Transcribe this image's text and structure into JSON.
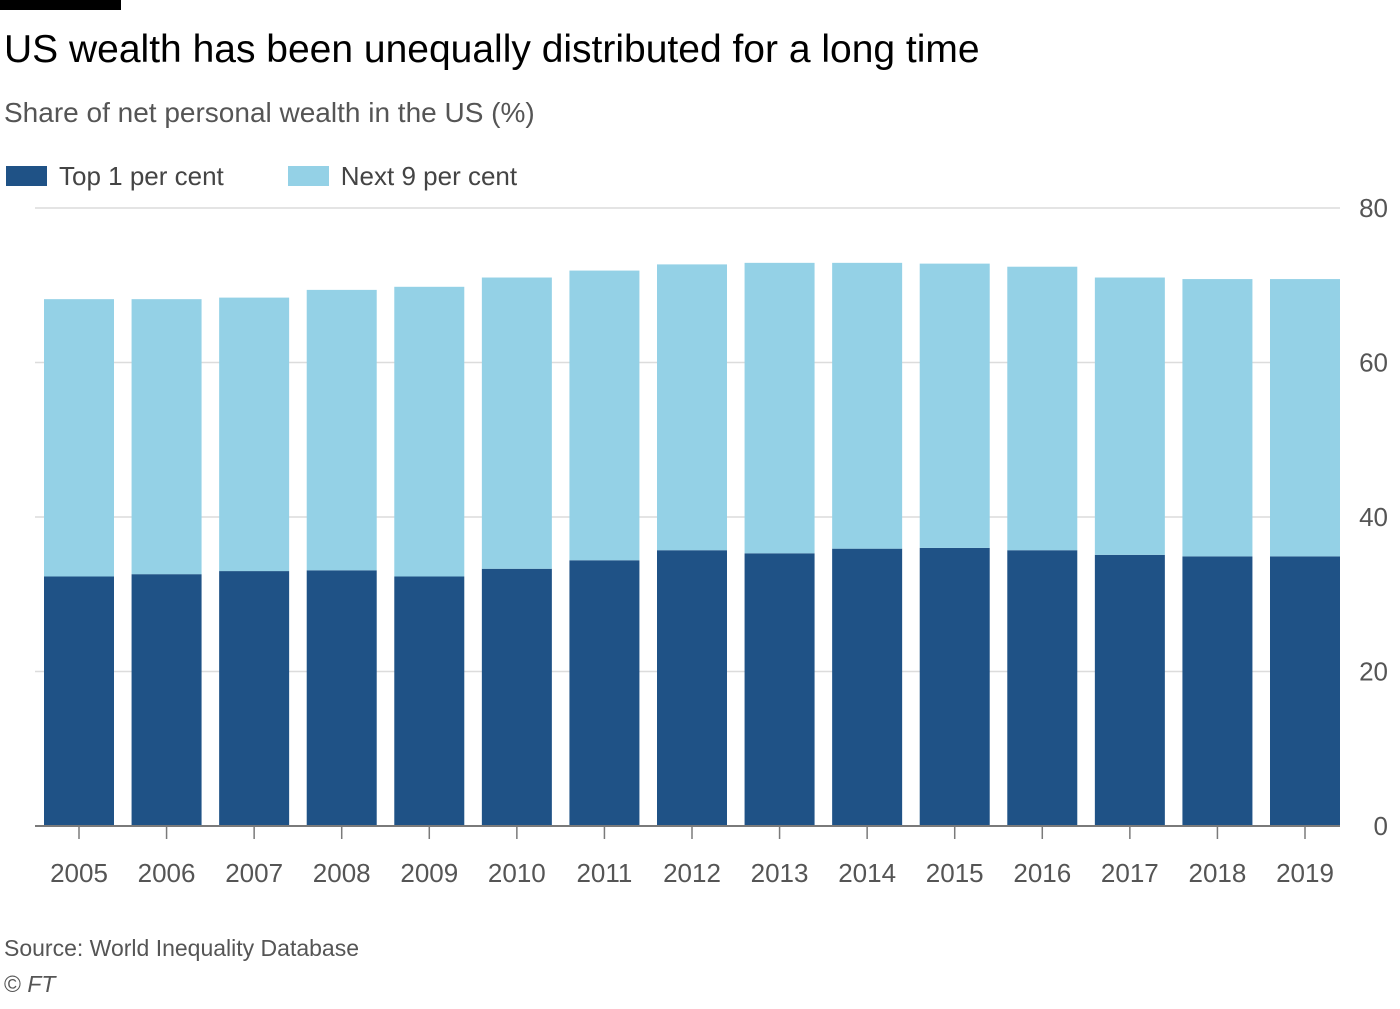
{
  "header": {
    "title": "US wealth has been unequally distributed for a long time",
    "subtitle": "Share of net personal wealth in the US (%)"
  },
  "legend": [
    {
      "label": "Top 1 per cent",
      "color": "#1f5286"
    },
    {
      "label": "Next 9 per cent",
      "color": "#94d1e6"
    }
  ],
  "footer": {
    "source": "Source: World Inequality Database",
    "credit_symbol": "©",
    "credit_org": "FT"
  },
  "colors": {
    "gridline": "#dcdcdc",
    "axis": "#7a7a7a",
    "tick_text": "#555555"
  },
  "chart_data": {
    "type": "bar",
    "stacked": true,
    "categories": [
      "2005",
      "2006",
      "2007",
      "2008",
      "2009",
      "2010",
      "2011",
      "2012",
      "2013",
      "2014",
      "2015",
      "2016",
      "2017",
      "2018",
      "2019"
    ],
    "series": [
      {
        "name": "Top 1 per cent",
        "color": "#1f5286",
        "values": [
          32.3,
          32.6,
          33.0,
          33.1,
          32.3,
          33.3,
          34.4,
          35.7,
          35.3,
          35.9,
          36.0,
          35.7,
          35.1,
          34.9,
          34.9
        ]
      },
      {
        "name": "Next 9 per cent",
        "color": "#94d1e6",
        "values": [
          35.9,
          35.6,
          35.4,
          36.3,
          37.5,
          37.7,
          37.5,
          37.0,
          37.6,
          37.0,
          36.8,
          36.7,
          35.9,
          35.9,
          35.9
        ]
      }
    ],
    "ylim": [
      0,
      80
    ],
    "yticks": [
      0,
      20,
      40,
      60,
      80
    ],
    "y_axis_side": "right",
    "grid": true,
    "legend_position": "top-left",
    "xlabel": "",
    "ylabel": ""
  }
}
